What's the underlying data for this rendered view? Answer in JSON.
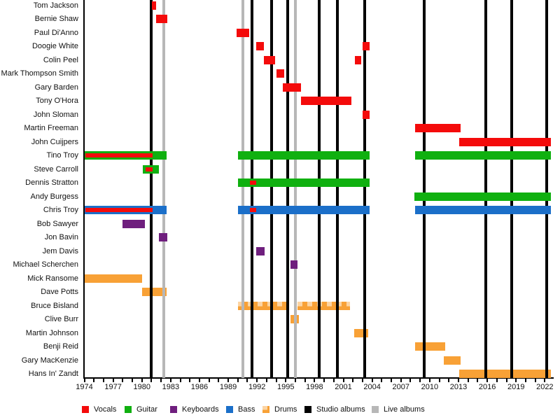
{
  "chart_data": {
    "type": "bar",
    "variant": "band-member-timeline-gantt",
    "title": "",
    "x_axis": {
      "start_year": 1974,
      "end_year": 2022,
      "tick_every_years": 1,
      "label_every_years": 3,
      "tick_labels": [
        "1974",
        "1977",
        "1980",
        "1983",
        "1986",
        "1989",
        "1992",
        "1995",
        "1998",
        "2001",
        "2004",
        "2007",
        "2010",
        "2013",
        "2016",
        "2019",
        "2022"
      ]
    },
    "colors": {
      "vocals": "#f40b0b",
      "guitar": "#10b010",
      "keyboards": "#6f1f7e",
      "bass": "#1b6fc9",
      "drums": "#f8a136",
      "studio": "#000000",
      "live": "#b7b7b7"
    },
    "legend": [
      {
        "label": "Vocals",
        "role": "vocals"
      },
      {
        "label": "Guitar",
        "role": "guitar"
      },
      {
        "label": "Keyboards",
        "role": "keyboards"
      },
      {
        "label": "Bass",
        "role": "bass"
      },
      {
        "label": "Drums",
        "role": "drums"
      },
      {
        "label": "Studio albums",
        "role": "studio"
      },
      {
        "label": "Live albums",
        "role": "live"
      }
    ],
    "album_lines": [
      {
        "year": 1981.0,
        "kind": "studio"
      },
      {
        "year": 1982.25,
        "kind": "live"
      },
      {
        "year": 1990.55,
        "kind": "live"
      },
      {
        "year": 1991.5,
        "kind": "studio"
      },
      {
        "year": 1993.5,
        "kind": "studio"
      },
      {
        "year": 1995.2,
        "kind": "studio"
      },
      {
        "year": 1996.0,
        "kind": "live"
      },
      {
        "year": 1998.5,
        "kind": "studio"
      },
      {
        "year": 2000.4,
        "kind": "studio"
      },
      {
        "year": 2003.25,
        "kind": "studio"
      },
      {
        "year": 2009.4,
        "kind": "studio"
      },
      {
        "year": 2015.85,
        "kind": "studio"
      },
      {
        "year": 2018.55,
        "kind": "studio"
      },
      {
        "year": 2022.2,
        "kind": "studio"
      }
    ],
    "members": [
      {
        "name": "Tom Jackson",
        "bars": [
          {
            "role": "vocals",
            "start": 1981.05,
            "end": 1981.45
          }
        ]
      },
      {
        "name": "Bernie Shaw",
        "bars": [
          {
            "role": "vocals",
            "start": 1981.45,
            "end": 1982.65
          }
        ]
      },
      {
        "name": "Paul Di'Anno",
        "bars": [
          {
            "role": "vocals",
            "start": 1989.9,
            "end": 1991.15
          }
        ]
      },
      {
        "name": "Doogie White",
        "bars": [
          {
            "role": "vocals",
            "start": 1991.9,
            "end": 1992.75
          },
          {
            "role": "vocals",
            "start": 2003.0,
            "end": 2003.75
          }
        ]
      },
      {
        "name": "Colin Peel",
        "bars": [
          {
            "role": "vocals",
            "start": 1992.75,
            "end": 1993.9
          },
          {
            "role": "vocals",
            "start": 2002.2,
            "end": 2002.85
          }
        ]
      },
      {
        "name": "Mark Thompson Smith",
        "bars": [
          {
            "role": "vocals",
            "start": 1994.0,
            "end": 1994.85
          }
        ]
      },
      {
        "name": "Gary Barden",
        "bars": [
          {
            "role": "vocals",
            "start": 1994.7,
            "end": 1996.6
          }
        ]
      },
      {
        "name": "Tony O'Hora",
        "bars": [
          {
            "role": "vocals",
            "start": 1996.6,
            "end": 2001.85
          }
        ]
      },
      {
        "name": "John Sloman",
        "bars": [
          {
            "role": "vocals",
            "start": 2003.0,
            "end": 2003.75
          }
        ]
      },
      {
        "name": "Martin Freeman",
        "bars": [
          {
            "role": "vocals",
            "start": 2008.5,
            "end": 2013.2
          }
        ]
      },
      {
        "name": "John Cuijpers",
        "bars": [
          {
            "role": "vocals",
            "start": 2013.1,
            "end": 2022.6
          }
        ]
      },
      {
        "name": "Tino Troy",
        "bars": [
          {
            "role": "guitar",
            "start": 1974.0,
            "end": 1982.6,
            "vocal_stripe": {
              "start": 1974.0,
              "end": 1981.1
            }
          },
          {
            "role": "guitar",
            "start": 1990.0,
            "end": 2003.7
          },
          {
            "role": "guitar",
            "start": 2008.5,
            "end": 2022.6
          }
        ]
      },
      {
        "name": "Steve Carroll",
        "bars": [
          {
            "role": "guitar",
            "start": 1980.1,
            "end": 1981.8,
            "vocal_stripe": {
              "start": 1980.3,
              "end": 1981.1
            }
          }
        ]
      },
      {
        "name": "Dennis Stratton",
        "bars": [
          {
            "role": "guitar",
            "start": 1990.0,
            "end": 2003.7,
            "vocal_stripe": {
              "start": 1991.2,
              "end": 1991.9
            }
          }
        ]
      },
      {
        "name": "Andy Burgess",
        "bars": [
          {
            "role": "guitar",
            "start": 2008.4,
            "end": 2022.6
          }
        ]
      },
      {
        "name": "Chris Troy",
        "bars": [
          {
            "role": "bass",
            "start": 1974.0,
            "end": 1982.6,
            "vocal_stripe": {
              "start": 1974.0,
              "end": 1981.1
            }
          },
          {
            "role": "bass",
            "start": 1990.0,
            "end": 2003.7,
            "vocal_stripe": {
              "start": 1991.2,
              "end": 1991.9
            }
          },
          {
            "role": "bass",
            "start": 2008.5,
            "end": 2022.6
          }
        ]
      },
      {
        "name": "Bob Sawyer",
        "bars": [
          {
            "role": "keyboards",
            "start": 1978.0,
            "end": 1980.3
          }
        ]
      },
      {
        "name": "Jon Bavin",
        "bars": [
          {
            "role": "keyboards",
            "start": 1981.75,
            "end": 1982.65
          }
        ]
      },
      {
        "name": "Jem Davis",
        "bars": [
          {
            "role": "keyboards",
            "start": 1991.9,
            "end": 1992.8
          }
        ]
      },
      {
        "name": "Michael Scherchen",
        "bars": [
          {
            "role": "keyboards",
            "start": 1995.5,
            "end": 1996.25
          }
        ]
      },
      {
        "name": "Mick Ransome",
        "bars": [
          {
            "role": "drums",
            "start": 1974.0,
            "end": 1980.0
          }
        ]
      },
      {
        "name": "Dave Potts",
        "bars": [
          {
            "role": "drums",
            "start": 1980.0,
            "end": 1982.6
          }
        ]
      },
      {
        "name": "Bruce Bisland",
        "bars": [
          {
            "role": "drums",
            "start": 1990.0,
            "end": 1995.35,
            "pattern": "faded"
          },
          {
            "role": "drums",
            "start": 1996.25,
            "end": 2001.7,
            "pattern": "faded"
          }
        ]
      },
      {
        "name": "Clive Burr",
        "bars": [
          {
            "role": "drums",
            "start": 1995.5,
            "end": 1996.4
          }
        ]
      },
      {
        "name": "Martin Johnson",
        "bars": [
          {
            "role": "drums",
            "start": 2002.1,
            "end": 2003.6
          }
        ]
      },
      {
        "name": "Benji Reid",
        "bars": [
          {
            "role": "drums",
            "start": 2008.5,
            "end": 2011.6
          }
        ]
      },
      {
        "name": "Gary MacKenzie",
        "bars": [
          {
            "role": "drums",
            "start": 2011.5,
            "end": 2013.2
          }
        ]
      },
      {
        "name": "Hans In' Zandt",
        "bars": [
          {
            "role": "drums",
            "start": 2013.1,
            "end": 2022.6
          }
        ]
      }
    ]
  }
}
